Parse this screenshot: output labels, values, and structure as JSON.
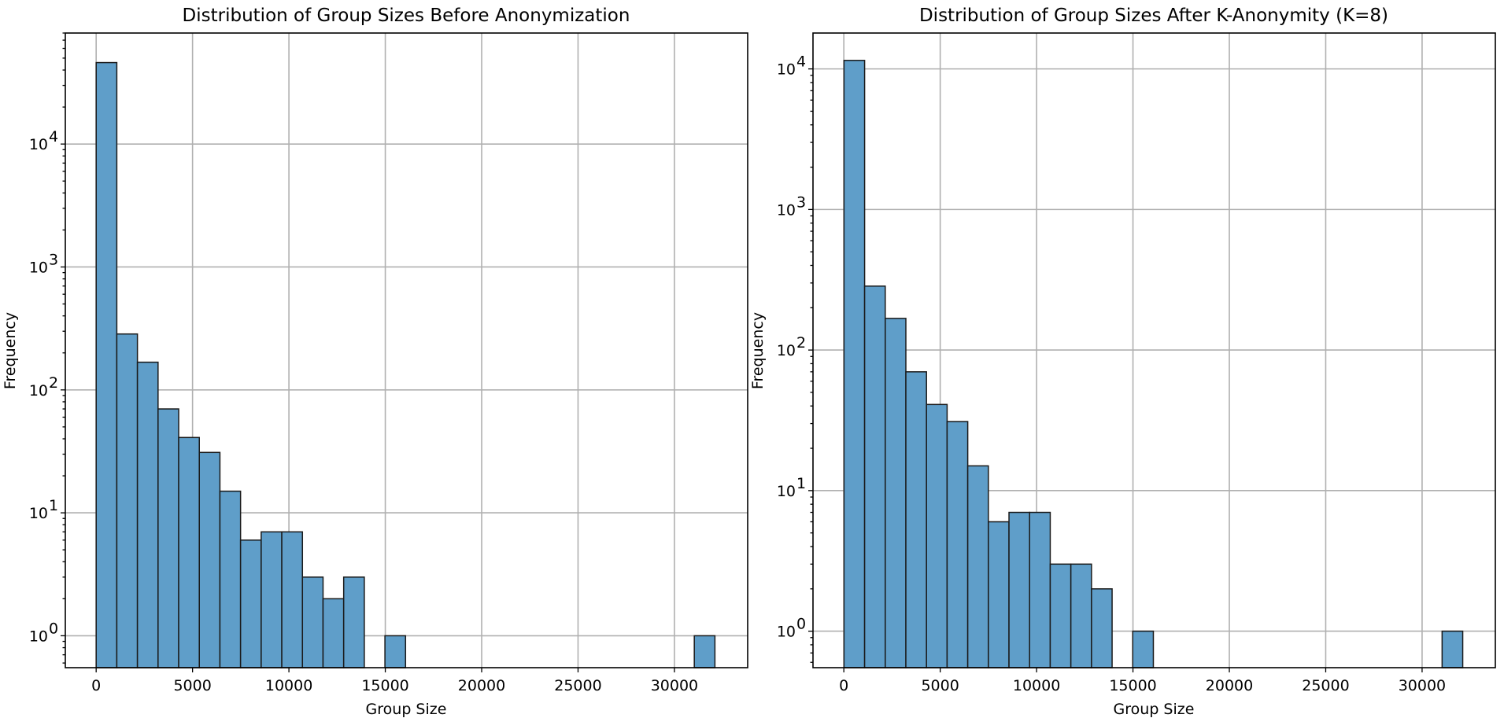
{
  "chart_data": [
    {
      "type": "bar",
      "title": "Distribution of Group Sizes Before Anonymization",
      "xlabel": "Group Size",
      "ylabel": "Frequency",
      "yscale": "log",
      "xlim": [
        -1600,
        33800
      ],
      "ylim": [
        0.55,
        80000
      ],
      "grid": true,
      "x_ticks": [
        0,
        5000,
        10000,
        15000,
        20000,
        25000,
        30000
      ],
      "x_tick_labels": [
        "0",
        "5000",
        "10000",
        "15000",
        "20000",
        "25000",
        "30000"
      ],
      "y_ticks": [
        1,
        10,
        100,
        1000,
        10000
      ],
      "y_tick_labels": [
        {
          "base": "10",
          "exp": "0"
        },
        {
          "base": "10",
          "exp": "1"
        },
        {
          "base": "10",
          "exp": "2"
        },
        {
          "base": "10",
          "exp": "3"
        },
        {
          "base": "10",
          "exp": "4"
        }
      ],
      "bin_edges": [
        1,
        1071,
        2141,
        3211,
        4281,
        5351,
        6421,
        7491,
        8561,
        9631,
        10701,
        11771,
        12841,
        13911,
        14981,
        16051,
        17121,
        18191,
        19261,
        20331,
        21401,
        22471,
        23541,
        24611,
        25681,
        26751,
        27821,
        28891,
        29961,
        31031,
        32101
      ],
      "values": [
        46000,
        285,
        168,
        70,
        41,
        31,
        15,
        6,
        7,
        7,
        3,
        2,
        3,
        0,
        1,
        0,
        0,
        0,
        0,
        0,
        0,
        0,
        0,
        0,
        0,
        0,
        0,
        0,
        0,
        1
      ],
      "bar_color": "#5f9ec9"
    },
    {
      "type": "bar",
      "title": "Distribution of Group Sizes After K-Anonymity (K=8)",
      "xlabel": "Group Size",
      "ylabel": "Frequency",
      "yscale": "log",
      "xlim": [
        -1600,
        33800
      ],
      "ylim": [
        0.55,
        18000
      ],
      "grid": true,
      "x_ticks": [
        0,
        5000,
        10000,
        15000,
        20000,
        25000,
        30000
      ],
      "x_tick_labels": [
        "0",
        "5000",
        "10000",
        "15000",
        "20000",
        "25000",
        "30000"
      ],
      "y_ticks": [
        1,
        10,
        100,
        1000,
        10000
      ],
      "y_tick_labels": [
        {
          "base": "10",
          "exp": "0"
        },
        {
          "base": "10",
          "exp": "1"
        },
        {
          "base": "10",
          "exp": "2"
        },
        {
          "base": "10",
          "exp": "3"
        },
        {
          "base": "10",
          "exp": "4"
        }
      ],
      "bin_edges": [
        8,
        1078,
        2148,
        3218,
        4288,
        5358,
        6428,
        7498,
        8568,
        9638,
        10708,
        11778,
        12848,
        13918,
        14988,
        16058,
        17128,
        18198,
        19268,
        20338,
        21408,
        22478,
        23548,
        24618,
        25688,
        26758,
        27828,
        28898,
        29968,
        31038,
        32108
      ],
      "values": [
        11500,
        285,
        168,
        70,
        41,
        31,
        15,
        6,
        7,
        7,
        3,
        3,
        2,
        0,
        1,
        0,
        0,
        0,
        0,
        0,
        0,
        0,
        0,
        0,
        0,
        0,
        0,
        0,
        0,
        1
      ],
      "bar_color": "#5f9ec9"
    }
  ]
}
